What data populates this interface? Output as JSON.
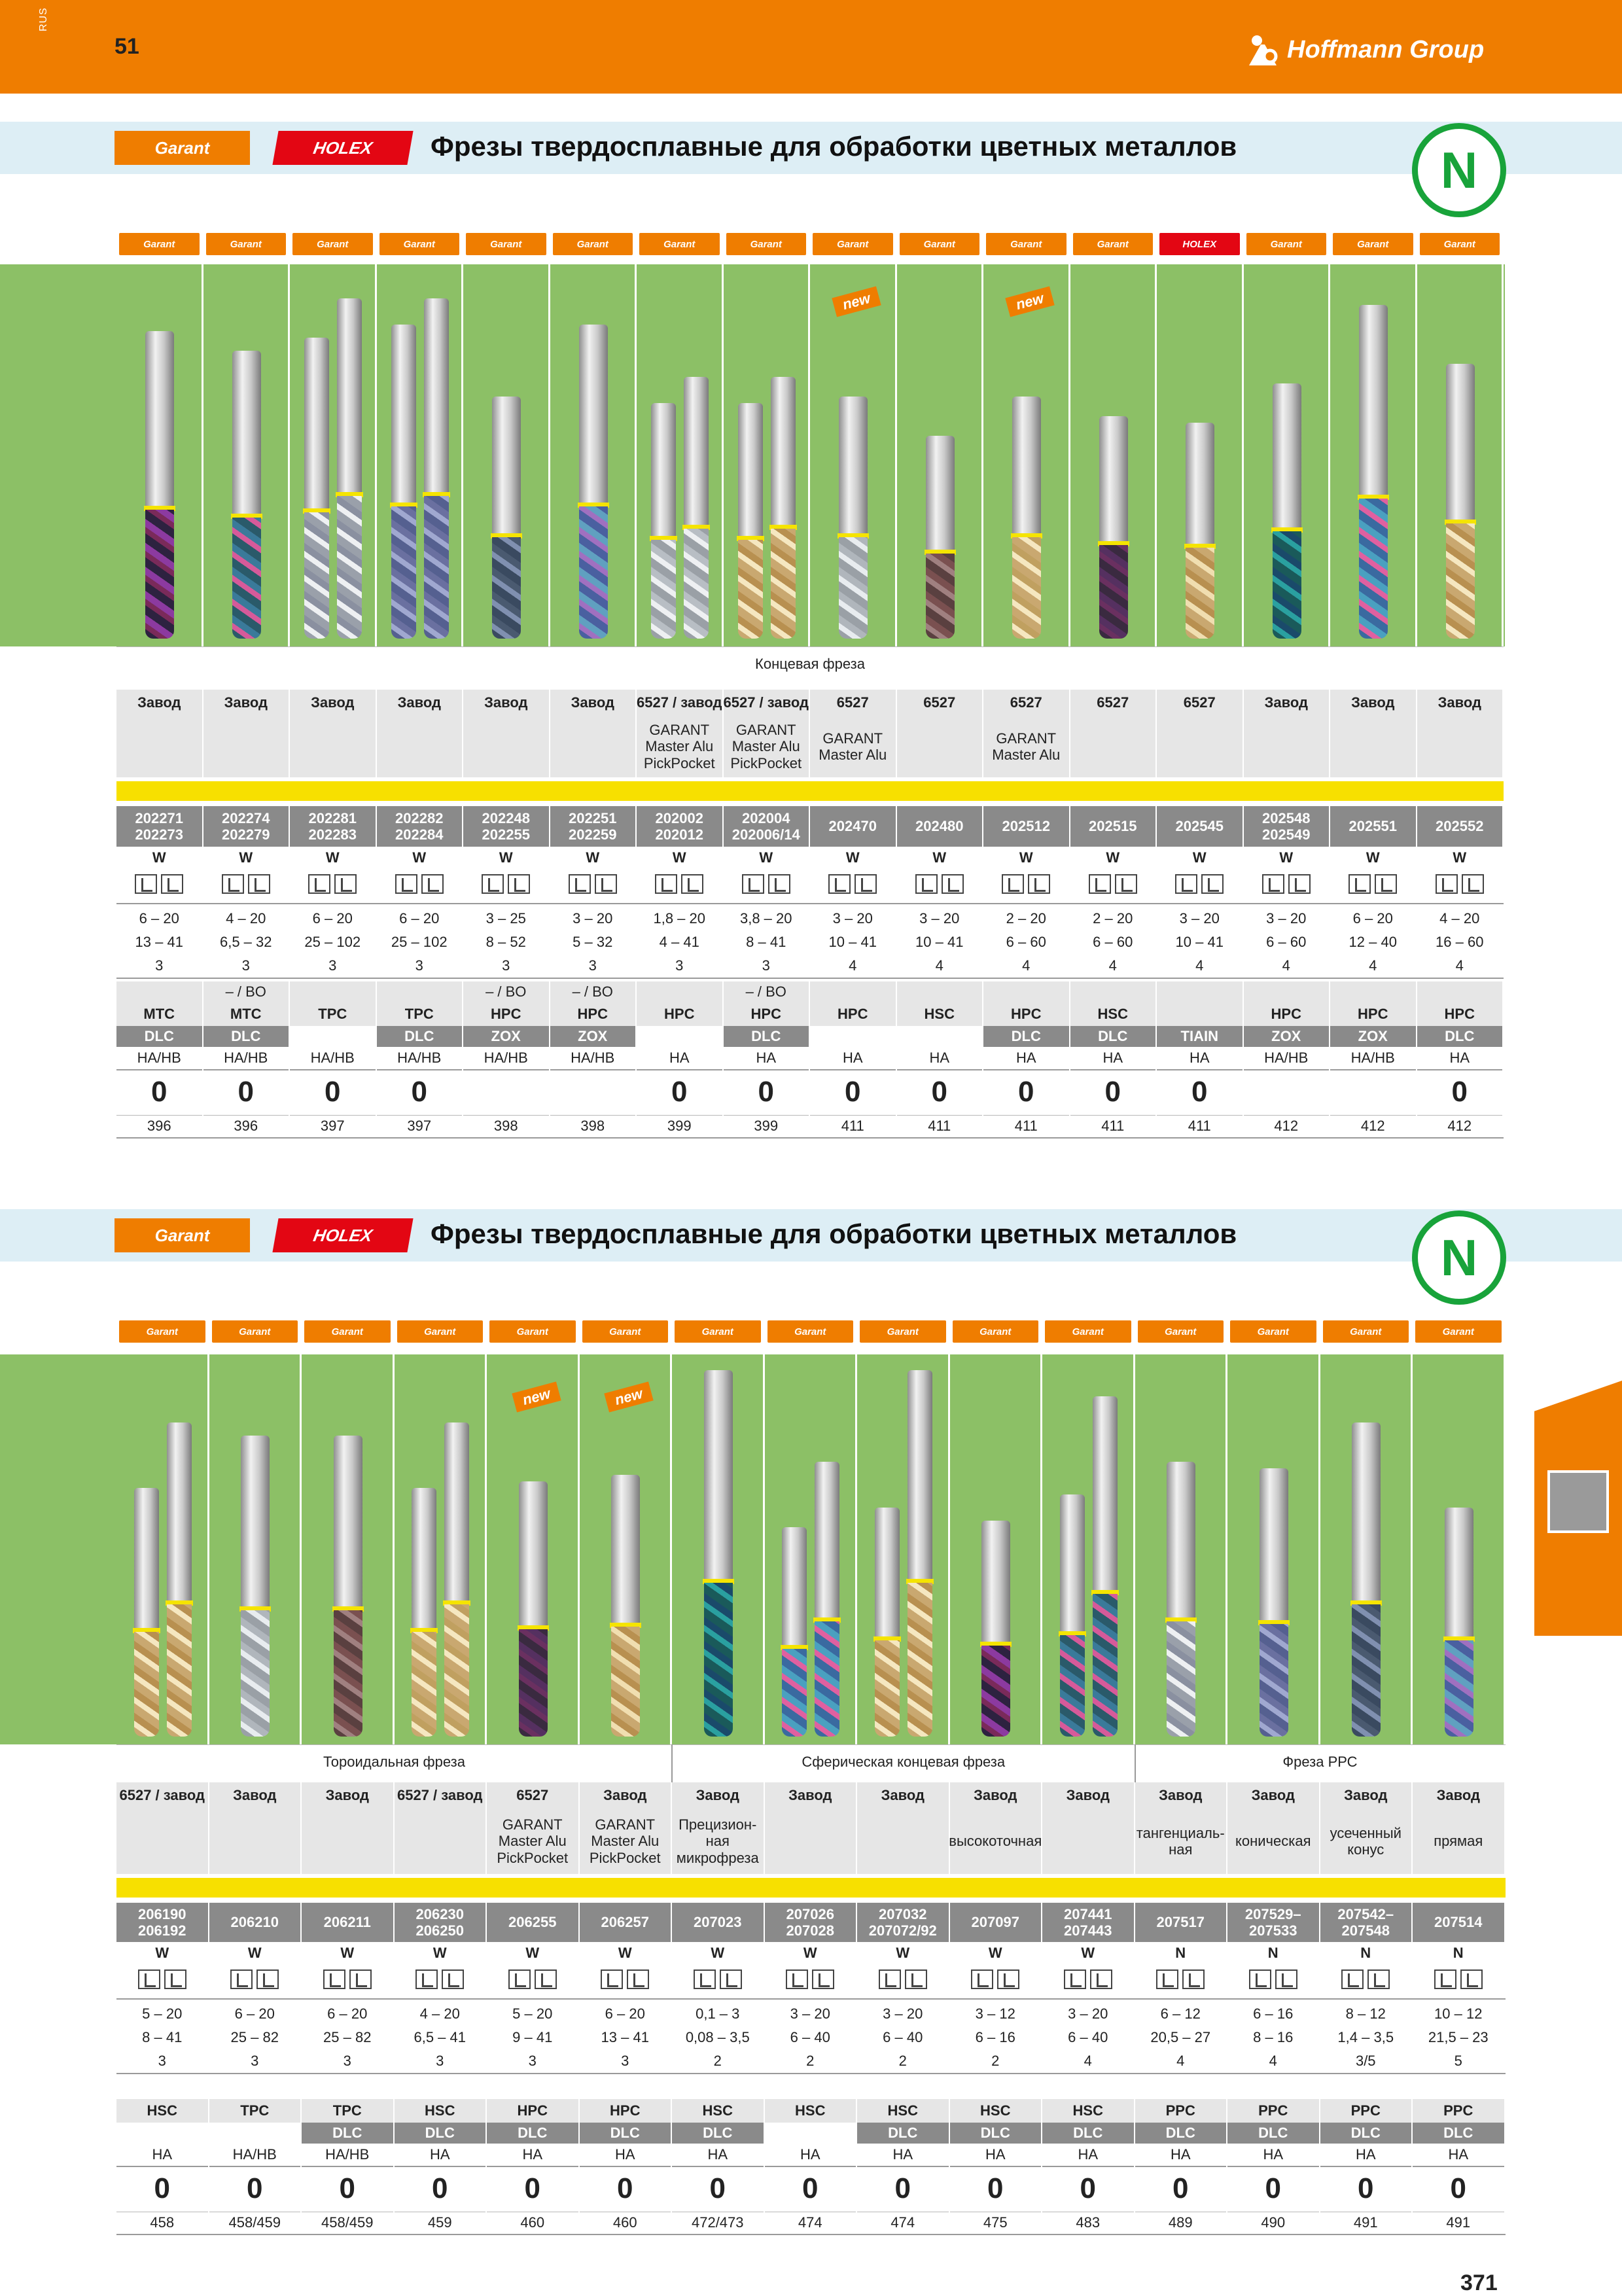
{
  "header": {
    "lang": "RUS",
    "page": "51",
    "company": "Hoffmann Group"
  },
  "section1": {
    "brand_garant": "Garant",
    "brand_holex": "HOLEX",
    "title": "Фрезы твердосплавные для обработки цветных металлов",
    "material_group": "N",
    "category": "Концевая фреза",
    "brands": [
      "Garant",
      "Garant",
      "Garant",
      "Garant",
      "Garant",
      "Garant",
      "Garant",
      "Garant",
      "Garant",
      "Garant",
      "Garant",
      "Garant",
      "HOLEX",
      "Garant",
      "Garant",
      "Garant"
    ],
    "new_label": "new",
    "stock": [
      "Завод",
      "Завод",
      "Завод",
      "Завод",
      "Завод",
      "Завод",
      "6527 / завод",
      "6527 / завод",
      "6527",
      "6527",
      "6527",
      "6527",
      "6527",
      "Завод",
      "Завод",
      "Завод"
    ],
    "lines": [
      [
        "",
        ""
      ],
      [
        "",
        ""
      ],
      [
        "",
        ""
      ],
      [
        "",
        ""
      ],
      [
        "",
        ""
      ],
      [
        "",
        ""
      ],
      [
        "GARANT",
        "Master Alu",
        "PickPocket"
      ],
      [
        "GARANT",
        "Master Alu",
        "PickPocket"
      ],
      [
        "GARANT",
        "Master Alu"
      ],
      [
        ""
      ],
      [
        "GARANT",
        "Master Alu"
      ],
      [
        ""
      ],
      [
        ""
      ],
      [
        ""
      ],
      [
        ""
      ],
      [
        ""
      ]
    ],
    "articles": [
      [
        "202271",
        "202273"
      ],
      [
        "202274",
        "202279"
      ],
      [
        "202281",
        "202283"
      ],
      [
        "202282",
        "202284"
      ],
      [
        "202248",
        "202255"
      ],
      [
        "202251",
        "202259"
      ],
      [
        "202002",
        "202012"
      ],
      [
        "202004",
        "202006/14"
      ],
      [
        "202470"
      ],
      [
        "202480"
      ],
      [
        "202512"
      ],
      [
        "202515"
      ],
      [
        "202545"
      ],
      [
        "202548",
        "202549"
      ],
      [
        "202551"
      ],
      [
        "202552"
      ]
    ],
    "shank": [
      "W",
      "W",
      "W",
      "W",
      "W",
      "W",
      "W",
      "W",
      "W",
      "W",
      "W",
      "W",
      "W",
      "W",
      "W",
      "W"
    ],
    "diam": [
      "6 – 20",
      "4 – 20",
      "6 – 20",
      "6 – 20",
      "3 – 25",
      "3 – 20",
      "1,8 – 20",
      "3,8 – 20",
      "3 – 20",
      "3 – 20",
      "2 – 20",
      "2 – 20",
      "3 – 20",
      "3 – 20",
      "6 – 20",
      "4 – 20"
    ],
    "length": [
      "13 – 41",
      "6,5 – 32",
      "25 – 102",
      "25 – 102",
      "8 – 52",
      "5 – 32",
      "4 – 41",
      "8 – 41",
      "10 – 41",
      "10 – 41",
      "6 – 60",
      "6 – 60",
      "10 – 41",
      "6 – 60",
      "12 – 40",
      "16 – 60"
    ],
    "teeth": [
      "3",
      "3",
      "3",
      "3",
      "3",
      "3",
      "3",
      "3",
      "4",
      "4",
      "4",
      "4",
      "4",
      "4",
      "4",
      "4"
    ],
    "note": [
      "",
      "– / BO",
      "",
      "",
      "– / BO",
      "– / BO",
      "",
      "– / BO",
      "",
      "",
      "",
      "",
      "",
      "",
      "",
      ""
    ],
    "type": [
      "MTC",
      "MTC",
      "TPC",
      "TPC",
      "HPC",
      "HPC",
      "HPC",
      "HPC",
      "HPC",
      "HSC",
      "HPC",
      "HSC",
      "",
      "HPC",
      "HPC",
      "HPC"
    ],
    "coating": [
      "DLC",
      "DLC",
      "",
      "DLC",
      "ZOX",
      "ZOX",
      "",
      "DLC",
      "",
      "",
      "DLC",
      "DLC",
      "TIAIN",
      "ZOX",
      "ZOX",
      "DLC"
    ],
    "material": [
      "HA/HB",
      "HA/HB",
      "HA/HB",
      "HA/HB",
      "HA/HB",
      "HA/HB",
      "HA",
      "HA",
      "HA",
      "HA",
      "HA",
      "HA",
      "HA",
      "HA/HB",
      "HA/HB",
      "HA"
    ],
    "zero": [
      "0",
      "0",
      "0",
      "0",
      "",
      "",
      "0",
      "0",
      "0",
      "0",
      "0",
      "0",
      "0",
      "",
      "",
      "0"
    ],
    "pages": [
      "396",
      "396",
      "397",
      "397",
      "398",
      "398",
      "399",
      "399",
      "411",
      "411",
      "411",
      "411",
      "411",
      "412",
      "412",
      "412"
    ]
  },
  "section2": {
    "brand_garant": "Garant",
    "brand_holex": "HOLEX",
    "title": "Фрезы твердосплавные для обработки цветных металлов",
    "material_group": "N",
    "categories": [
      "Тороидальная фреза",
      "Сферическая концевая фреза",
      "Фреза РРС"
    ],
    "brands": [
      "Garant",
      "Garant",
      "Garant",
      "Garant",
      "Garant",
      "Garant",
      "Garant",
      "Garant",
      "Garant",
      "Garant",
      "Garant",
      "Garant",
      "Garant",
      "Garant",
      "Garant"
    ],
    "new_label": "new",
    "stock": [
      "6527 / завод",
      "Завод",
      "Завод",
      "6527 / завод",
      "6527",
      "Завод",
      "Завод",
      "Завод",
      "Завод",
      "Завод",
      "Завод",
      "Завод",
      "Завод",
      "Завод",
      "Завод"
    ],
    "lines": [
      [
        ""
      ],
      [
        ""
      ],
      [
        ""
      ],
      [
        ""
      ],
      [
        "GARANT",
        "Master Alu",
        "PickPocket"
      ],
      [
        "GARANT",
        "Master Alu",
        "PickPocket"
      ],
      [
        "Прецизион-",
        "ная",
        "микрофреза"
      ],
      [
        ""
      ],
      [
        ""
      ],
      [
        "высокоточная"
      ],
      [
        ""
      ],
      [
        "тангенциаль-",
        "ная"
      ],
      [
        "коническая"
      ],
      [
        "усеченный",
        "конус"
      ],
      [
        "прямая"
      ]
    ],
    "articles": [
      [
        "206190",
        "206192"
      ],
      [
        "206210"
      ],
      [
        "206211"
      ],
      [
        "206230",
        "206250"
      ],
      [
        "206255"
      ],
      [
        "206257"
      ],
      [
        "207023"
      ],
      [
        "207026",
        "207028"
      ],
      [
        "207032",
        "207072/92"
      ],
      [
        "207097"
      ],
      [
        "207441",
        "207443"
      ],
      [
        "207517"
      ],
      [
        "207529–",
        "207533"
      ],
      [
        "207542–",
        "207548"
      ],
      [
        "207514"
      ]
    ],
    "shank": [
      "W",
      "W",
      "W",
      "W",
      "W",
      "W",
      "W",
      "W",
      "W",
      "W",
      "W",
      "N",
      "N",
      "N",
      "N"
    ],
    "diam": [
      "5 – 20",
      "6 – 20",
      "6 – 20",
      "4 – 20",
      "5 – 20",
      "6 – 20",
      "0,1 – 3",
      "3 – 20",
      "3 – 20",
      "3 – 12",
      "3 – 20",
      "6 – 12",
      "6 – 16",
      "8 – 12",
      "10 – 12"
    ],
    "length": [
      "8 – 41",
      "25 – 82",
      "25 – 82",
      "6,5 – 41",
      "9 – 41",
      "13 – 41",
      "0,08 – 3,5",
      "6 – 40",
      "6 – 40",
      "6 – 16",
      "6 – 40",
      "20,5 – 27",
      "8 – 16",
      "1,4 – 3,5",
      "21,5 – 23"
    ],
    "teeth": [
      "3",
      "3",
      "3",
      "3",
      "3",
      "3",
      "2",
      "2",
      "2",
      "2",
      "4",
      "4",
      "4",
      "3/5",
      "5"
    ],
    "type": [
      "HSC",
      "TPC",
      "TPC",
      "HSC",
      "HPC",
      "HPC",
      "HSC",
      "HSC",
      "HSC",
      "HSC",
      "HSC",
      "PPC",
      "PPC",
      "PPC",
      "PPC"
    ],
    "coating": [
      "",
      "",
      "DLC",
      "DLC",
      "DLC",
      "DLC",
      "DLC",
      "",
      "DLC",
      "DLC",
      "DLC",
      "DLC",
      "DLC",
      "DLC",
      "DLC"
    ],
    "material": [
      "HA",
      "HA/HB",
      "HA/HB",
      "HA",
      "HA",
      "HA",
      "HA",
      "HA",
      "HA",
      "HA",
      "HA",
      "HA",
      "HA",
      "HA",
      "HA"
    ],
    "zero": [
      "0",
      "0",
      "0",
      "0",
      "0",
      "0",
      "0",
      "0",
      "0",
      "0",
      "0",
      "0",
      "0",
      "0",
      "0"
    ],
    "pages": [
      "458",
      "458/459",
      "458/459",
      "459",
      "460",
      "460",
      "472/473",
      "474",
      "474",
      "475",
      "483",
      "489",
      "490",
      "491",
      "491"
    ]
  },
  "footer": {
    "page": "371"
  },
  "colors": {
    "orange": "#ef7d00",
    "green": "#8cc066",
    "gray": "#8a8a8a",
    "yellow": "#f7e000",
    "n_green": "#18a33a",
    "holex_red": "#e30613"
  }
}
